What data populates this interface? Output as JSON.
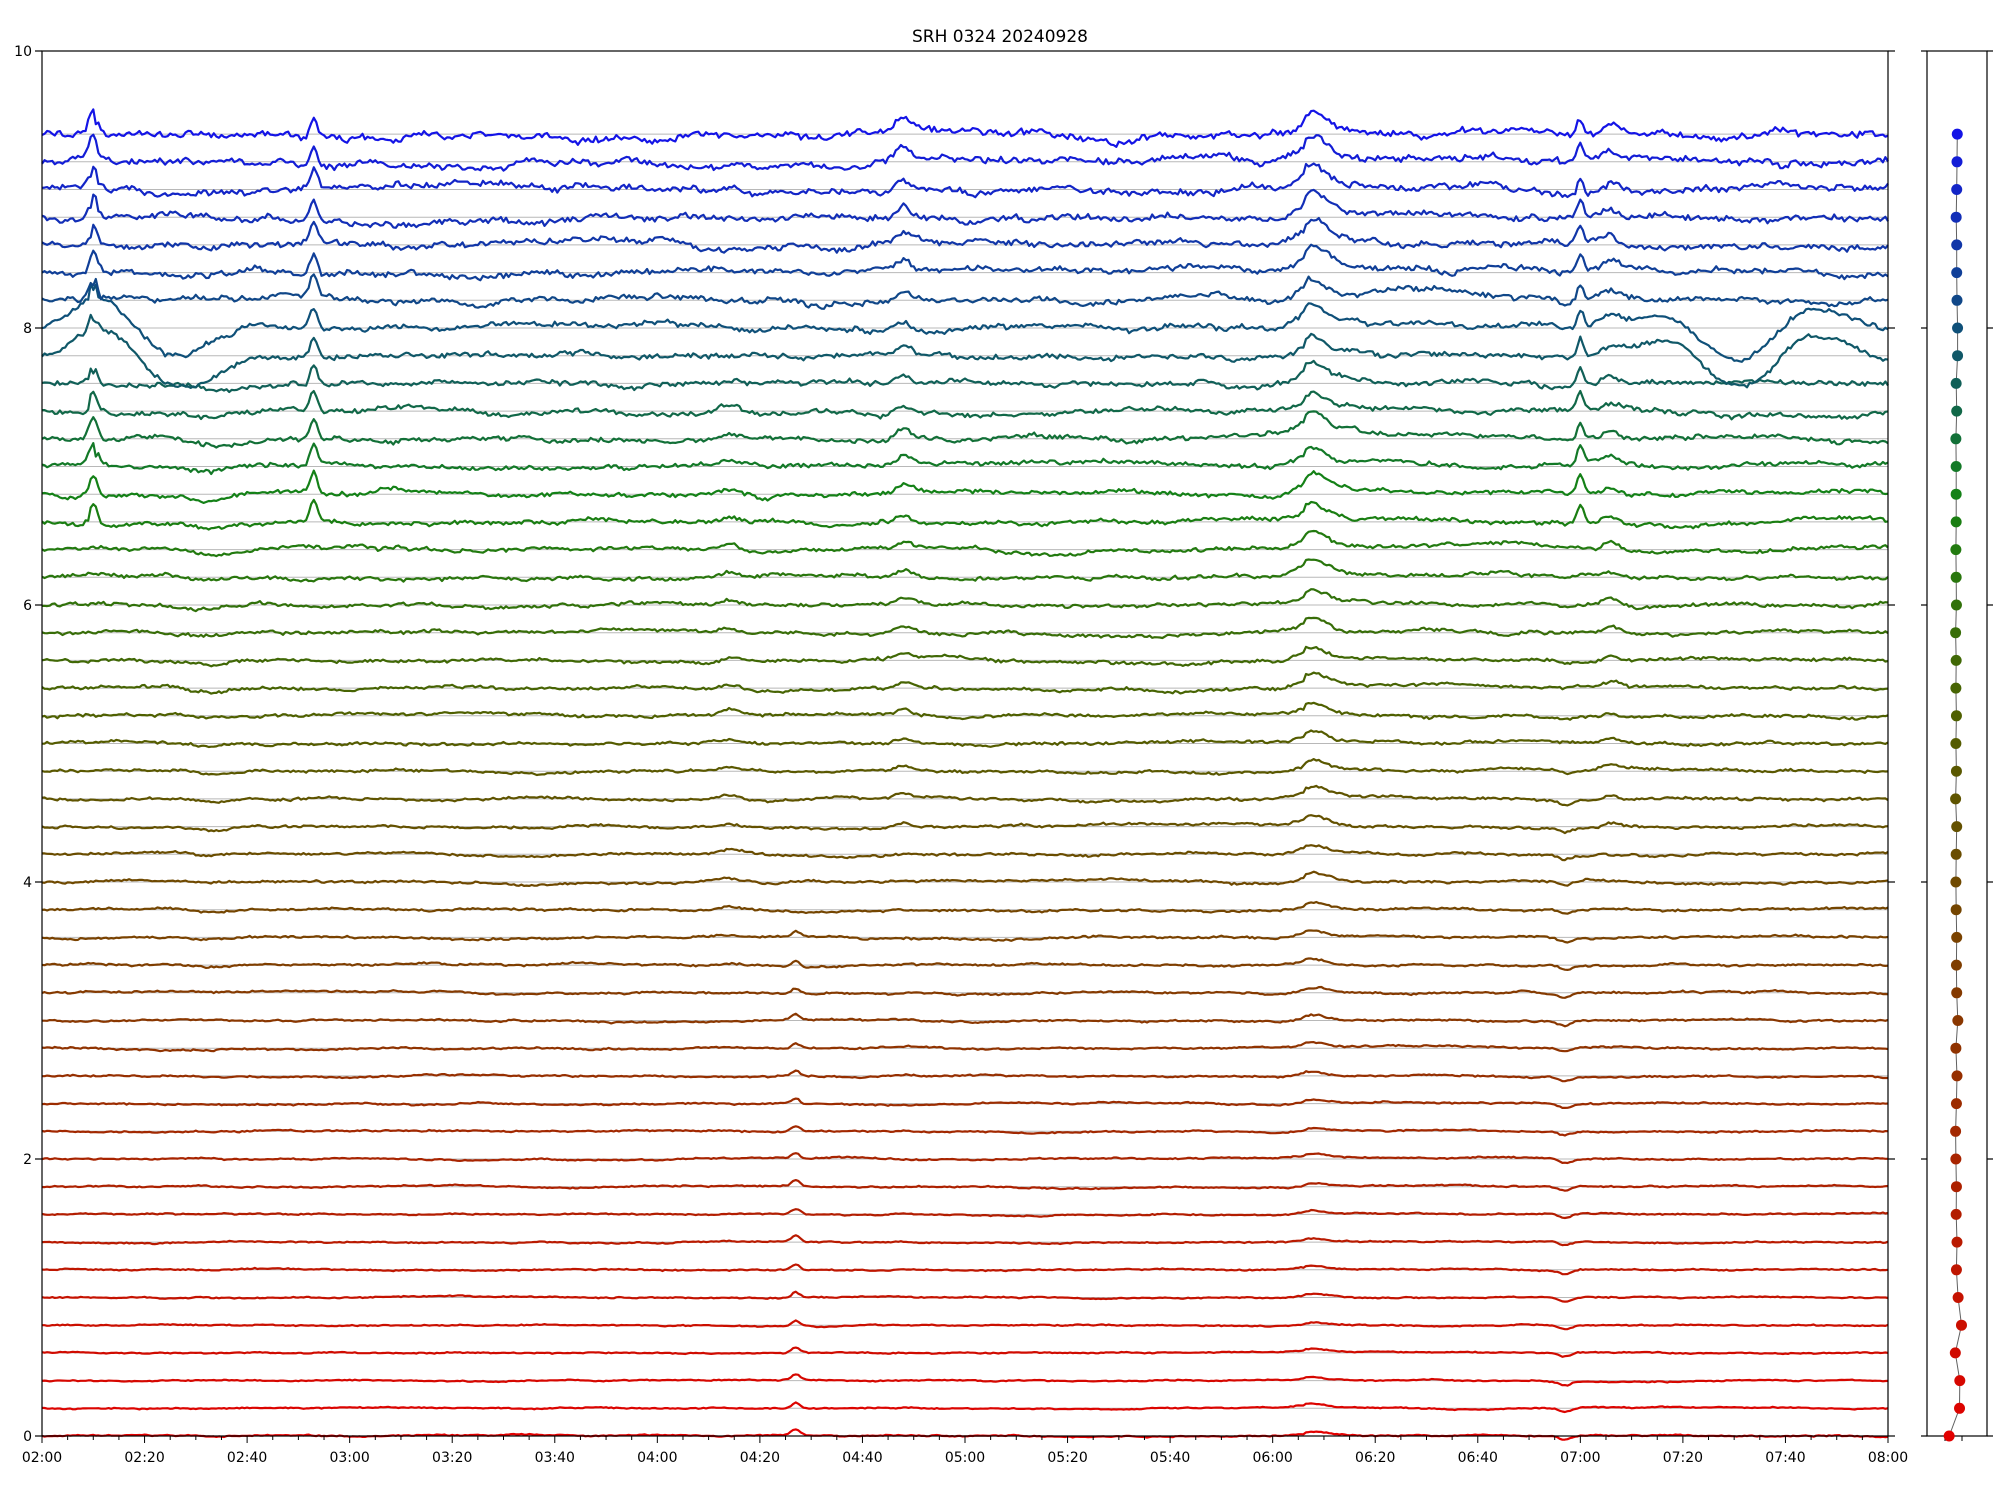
{
  "chart_data": [
    {
      "type": "line",
      "title": "SRH 0324 20240928",
      "xlabel": "",
      "ylabel": "",
      "x_range": [
        "02:00",
        "08:00"
      ],
      "xlim": [
        0,
        360
      ],
      "x_tick_labels": [
        "02:00",
        "02:20",
        "02:40",
        "03:00",
        "03:20",
        "03:40",
        "04:00",
        "04:20",
        "04:40",
        "05:00",
        "05:20",
        "05:40",
        "06:00",
        "06:20",
        "06:40",
        "07:00",
        "07:20",
        "07:40",
        "08:00"
      ],
      "x_tick_minutes": [
        0,
        20,
        40,
        60,
        80,
        100,
        120,
        140,
        160,
        180,
        200,
        220,
        240,
        260,
        280,
        300,
        320,
        340,
        360
      ],
      "ylim": [
        0,
        10
      ],
      "y_ticks": [
        0,
        2,
        4,
        6,
        8,
        10
      ],
      "y_tick_labels": [
        "0",
        "2",
        "4",
        "6",
        "8",
        "10"
      ],
      "grid": "horizontal at each trace baseline",
      "legend": "none",
      "trace_spacing": 0.2,
      "trace_count": 48,
      "color_gradient": "red (bottom trace) through brown, olive and green to blue (top trace)",
      "baseline_color": "#b8b8b8",
      "events_minutes": [
        10,
        53,
        148,
        168,
        222,
        252,
        300,
        317,
        327,
        347
      ],
      "common_peaks": [
        {
          "time": "04:14",
          "minute": 134,
          "traces": "lower-middle and upper"
        },
        {
          "time": "04:27",
          "minute": 147,
          "traces": "lower"
        },
        {
          "time": "04:48",
          "minute": 168,
          "traces": "upper"
        },
        {
          "time": "06:08",
          "minute": 248,
          "traces": "all"
        },
        {
          "time": "06:57",
          "minute": 297,
          "traces": "lower and upper"
        },
        {
          "time": "07:06",
          "minute": 306,
          "traces": "middle and upper"
        }
      ]
    },
    {
      "type": "scatter",
      "title": "",
      "x_tick_labels": [],
      "y_tick_labels": [],
      "ylim": [
        0,
        10
      ],
      "points_y": [
        0.0,
        0.2,
        0.4,
        0.6,
        0.8,
        1.0,
        1.2,
        1.4,
        1.6,
        1.8,
        2.0,
        2.2,
        2.4,
        2.6,
        2.8,
        3.0,
        3.2,
        3.4,
        3.6,
        3.8,
        4.0,
        4.2,
        4.4,
        4.6,
        4.8,
        5.0,
        5.2,
        5.4,
        5.6,
        5.8,
        6.0,
        6.2,
        6.4,
        6.6,
        6.8,
        7.0,
        7.2,
        7.4,
        7.6,
        7.8,
        8.0,
        8.2,
        8.4,
        8.6,
        8.8,
        9.0,
        9.2,
        9.4
      ],
      "points_x_offset": [
        -0.28,
        0.09,
        0.1,
        -0.06,
        0.16,
        0.04,
        -0.02,
        0.0,
        -0.03,
        -0.02,
        -0.04,
        -0.05,
        -0.02,
        0.0,
        -0.04,
        0.03,
        -0.01,
        -0.02,
        -0.01,
        -0.03,
        -0.04,
        -0.03,
        -0.01,
        -0.05,
        -0.02,
        -0.04,
        -0.02,
        -0.04,
        -0.03,
        -0.05,
        -0.02,
        -0.03,
        -0.04,
        -0.03,
        -0.03,
        -0.03,
        -0.04,
        -0.01,
        -0.03,
        0.02,
        0.02,
        0.0,
        -0.01,
        -0.01,
        -0.03,
        -0.01,
        0.0,
        0.01
      ],
      "marker": "filled circle",
      "connecting_line_color": "#606060"
    }
  ]
}
